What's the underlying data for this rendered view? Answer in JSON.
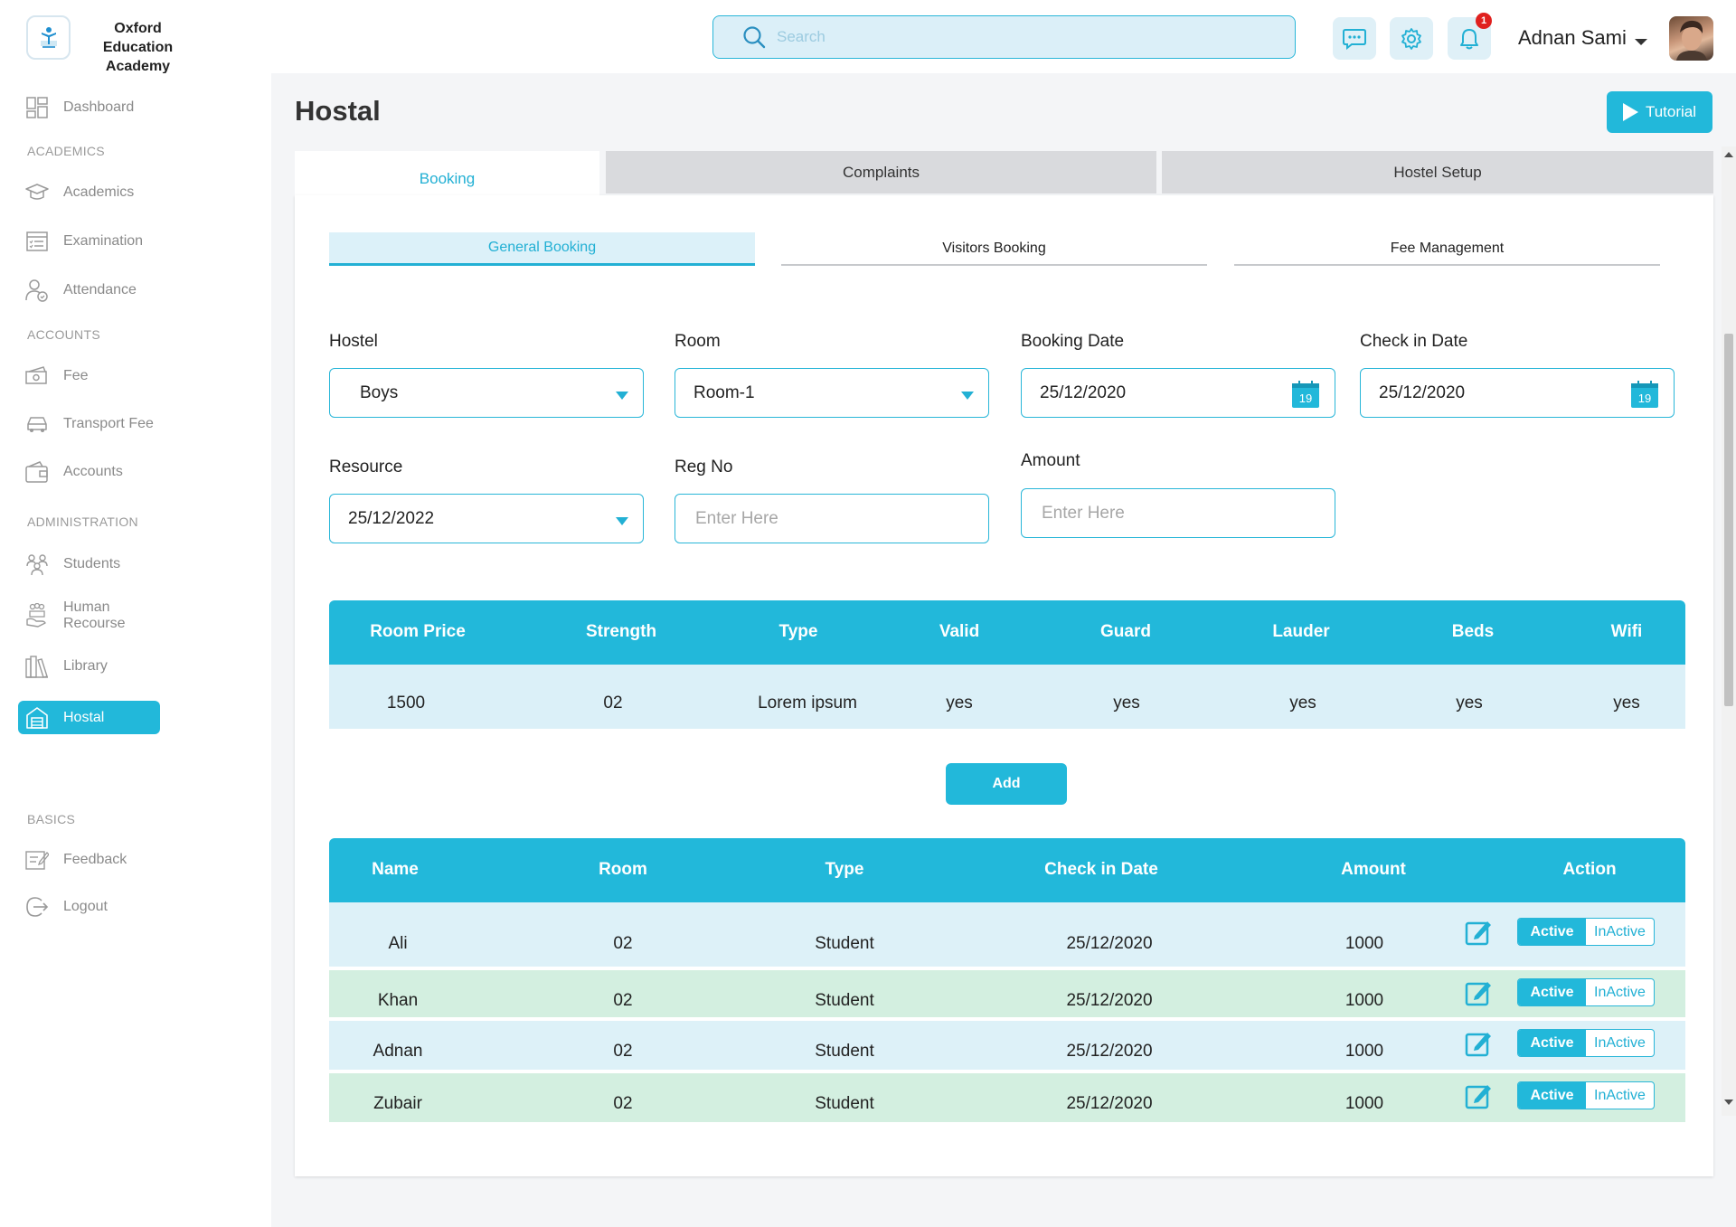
{
  "brand": {
    "name": "Oxford Education Academy"
  },
  "search": {
    "placeholder": "Search"
  },
  "notifications": {
    "count": "1"
  },
  "user": {
    "name": "Adnan Sami"
  },
  "sidebar": {
    "dashboard": "Dashboard",
    "section_academics": "ACADEMICS",
    "academics": "Academics",
    "examination": "Examination",
    "attendance": "Attendance",
    "section_accounts": "ACCOUNTS",
    "fee": "Fee",
    "transport_fee": "Transport Fee",
    "accounts": "Accounts",
    "section_administration": "ADMINISTRATION",
    "students": "Students",
    "human_recourse": "Human Recourse",
    "library": "Library",
    "hostal": "Hostal",
    "section_basics": "BASICS",
    "feedback": "Feedback",
    "logout": "Logout"
  },
  "page": {
    "title": "Hostal",
    "tutorial_label": "Tutorial"
  },
  "tabs": {
    "booking": "Booking",
    "complaints": "Complaints",
    "hostel_setup": "Hostel Setup"
  },
  "subtabs": {
    "general": "General Booking",
    "visitors": "Visitors Booking",
    "fee": "Fee Management"
  },
  "form": {
    "hostel_label": "Hostel",
    "hostel_value": "Boys",
    "room_label": "Room",
    "room_value": "Room-1",
    "booking_date_label": "Booking Date",
    "booking_date_value": "25/12/2020",
    "checkin_date_label": "Check in Date",
    "checkin_date_value": "25/12/2020",
    "calendar_day": "19",
    "resource_label": "Resource",
    "resource_value": "25/12/2022",
    "regno_label": "Reg No",
    "regno_placeholder": "Enter Here",
    "amount_label": "Amount",
    "amount_placeholder": "Enter Here"
  },
  "room_table": {
    "headers": [
      "Room Price",
      "Strength",
      "Type",
      "Valid",
      "Guard",
      "Lauder",
      "Beds",
      "Wifi"
    ],
    "row": [
      "1500",
      "02",
      "Lorem ipsum",
      "yes",
      "yes",
      "yes",
      "yes",
      "yes"
    ]
  },
  "add_label": "Add",
  "booking_table": {
    "headers": [
      "Name",
      "Room",
      "Type",
      "Check in Date",
      "Amount",
      "Action"
    ],
    "rows": [
      [
        "Ali",
        "02",
        "Student",
        "25/12/2020",
        "1000"
      ],
      [
        "Khan",
        "02",
        "Student",
        "25/12/2020",
        "1000"
      ],
      [
        "Adnan",
        "02",
        "Student",
        "25/12/2020",
        "1000"
      ],
      [
        "Zubair",
        "02",
        "Student",
        "25/12/2020",
        "1000"
      ]
    ],
    "active_label": "Active",
    "inactive_label": "InActive",
    "row_colors": [
      "#ddf1f8",
      "#d3efe0",
      "#ddf1f8",
      "#d3efe0"
    ]
  },
  "colors": {
    "accent": "#22b8da",
    "accent_text": "#22b0d4",
    "main_bg": "#f4f5f7"
  }
}
